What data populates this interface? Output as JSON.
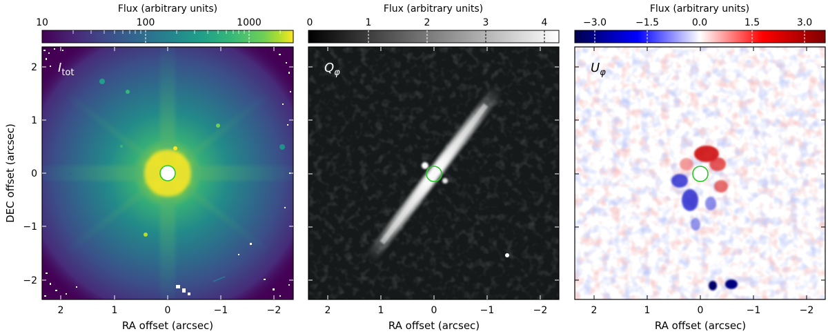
{
  "figure": {
    "panels": [
      {
        "label_main": "I",
        "label_sub": "tot",
        "colorbar": {
          "label": "Flux (arbitrary units)",
          "scale": "log",
          "colormap": "viridis",
          "range": [
            10,
            3000
          ],
          "ticks": [
            10,
            100,
            1000
          ],
          "tick_labels": [
            "10",
            "100",
            "1000"
          ]
        },
        "xlabel": "RA offset (arcsec)",
        "ylabel": "DEC offset (arcsec)"
      },
      {
        "label_main": "Q",
        "label_sub": "φ",
        "colorbar": {
          "label": "Flux (arbitrary units)",
          "scale": "linear",
          "colormap": "gray",
          "range": [
            0,
            4.3
          ],
          "ticks": [
            0,
            1,
            2,
            3,
            4
          ],
          "tick_labels": [
            "0",
            "1",
            "2",
            "3",
            "4"
          ]
        },
        "xlabel": "RA offset (arcsec)",
        "ylabel": ""
      },
      {
        "label_main": "U",
        "label_sub": "φ",
        "colorbar": {
          "label": "Flux (arbitrary units)",
          "scale": "linear",
          "colormap": "seismic",
          "range": [
            -3.6,
            3.6
          ],
          "ticks": [
            -3.0,
            -1.5,
            0.0,
            1.5,
            3.0
          ],
          "tick_labels": [
            "−3.0",
            "−1.5",
            "0.0",
            "1.5",
            "3.0"
          ]
        },
        "xlabel": "RA offset (arcsec)",
        "ylabel": ""
      }
    ],
    "x_axis": {
      "range": [
        2.35,
        -2.35
      ],
      "ticks": [
        2,
        1,
        0,
        -1,
        -2
      ],
      "tick_labels": [
        "2",
        "1",
        "0",
        "−1",
        "−2"
      ]
    },
    "y_axis": {
      "range": [
        -2.35,
        2.35
      ],
      "ticks": [
        -2,
        -1,
        0,
        1,
        2
      ],
      "tick_labels": [
        "−2",
        "−1",
        "0",
        "1",
        "2"
      ]
    },
    "coronagraph_marker": {
      "x": 0,
      "y": 0,
      "radius_arcsec": 0.15,
      "edge_color": "#22cc22"
    },
    "disk_position_angle_deg": 36
  }
}
